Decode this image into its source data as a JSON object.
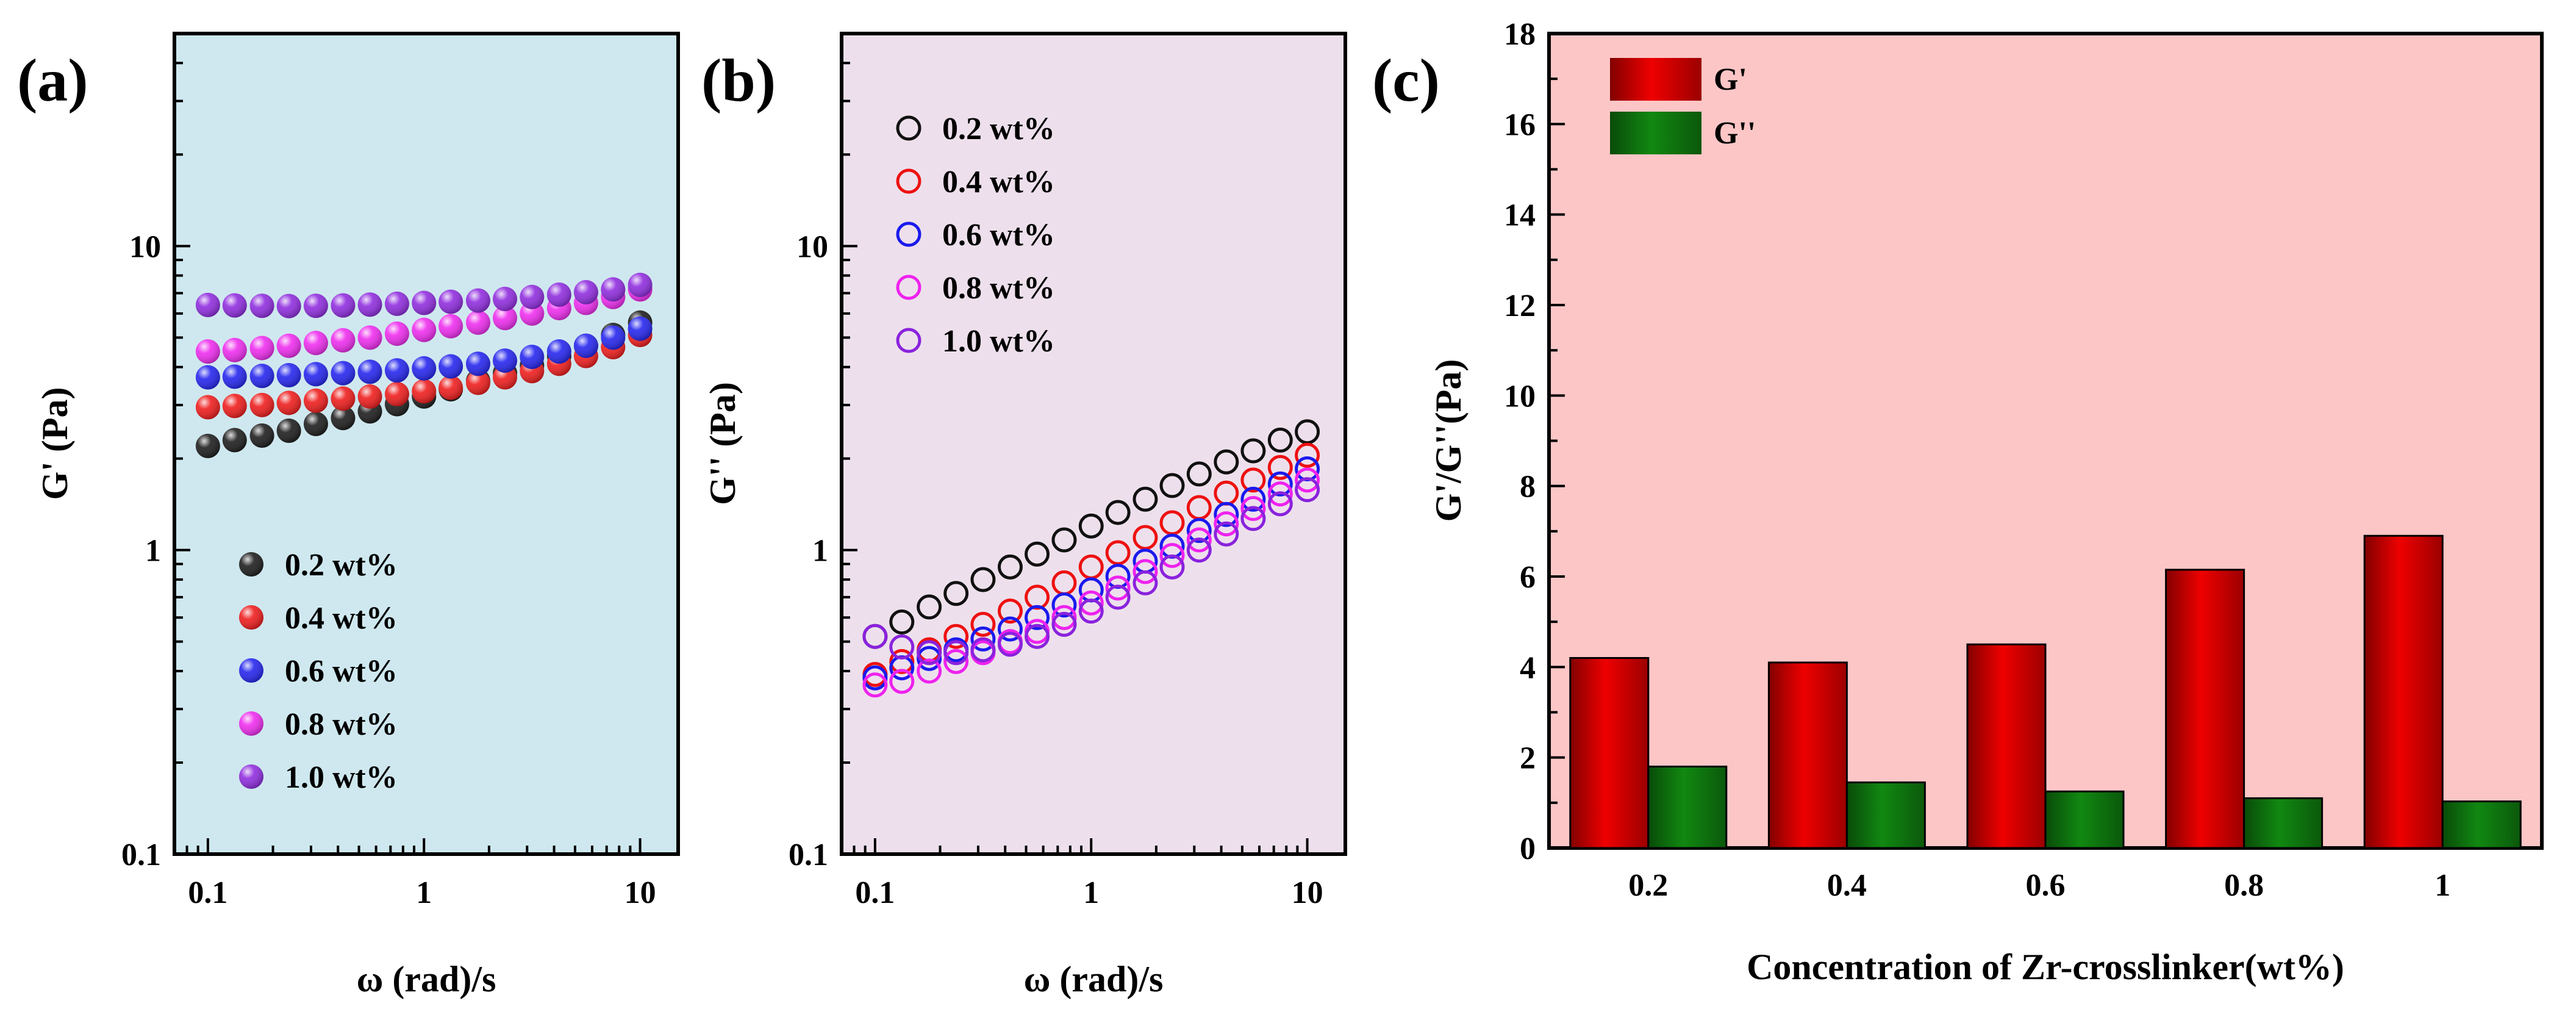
{
  "chart_data": [
    {
      "panel_label": "(a)",
      "type": "scatter",
      "xlabel": "ω (rad)/s",
      "ylabel": "G' (Pa)",
      "xscale": "log",
      "yscale": "log",
      "xlim": [
        0.07,
        15
      ],
      "ylim": [
        0.1,
        50
      ],
      "x_ticks": [
        {
          "v": 0.1,
          "label": "0.1"
        },
        {
          "v": 1,
          "label": "1"
        },
        {
          "v": 10,
          "label": "10"
        }
      ],
      "y_ticks": [
        {
          "v": 0.1,
          "label": "0.1"
        },
        {
          "v": 1,
          "label": "1"
        },
        {
          "v": 10,
          "label": "10"
        }
      ],
      "background": "#cfe8ef",
      "marker": "filled-sphere",
      "legend_position": "lower-right",
      "x": [
        0.1,
        0.133,
        0.178,
        0.237,
        0.316,
        0.422,
        0.562,
        0.75,
        1.0,
        1.33,
        1.78,
        2.37,
        3.16,
        4.22,
        5.62,
        7.5,
        10.0
      ],
      "series": [
        {
          "name": "0.2 wt%",
          "color": "#111111",
          "values": [
            2.2,
            2.3,
            2.38,
            2.47,
            2.6,
            2.72,
            2.86,
            3.02,
            3.2,
            3.38,
            3.6,
            3.82,
            4.05,
            4.35,
            4.7,
            5.1,
            5.6
          ]
        },
        {
          "name": "0.4 wt%",
          "color": "#ee1111",
          "values": [
            2.95,
            2.98,
            3.0,
            3.05,
            3.1,
            3.15,
            3.2,
            3.26,
            3.33,
            3.42,
            3.55,
            3.7,
            3.88,
            4.1,
            4.35,
            4.65,
            5.1
          ]
        },
        {
          "name": "0.6 wt%",
          "color": "#1a1aee",
          "values": [
            3.7,
            3.72,
            3.74,
            3.76,
            3.79,
            3.82,
            3.86,
            3.9,
            3.96,
            4.02,
            4.1,
            4.2,
            4.32,
            4.5,
            4.7,
            5.0,
            5.35
          ]
        },
        {
          "name": "0.8 wt%",
          "color": "#ee22ee",
          "values": [
            4.5,
            4.55,
            4.62,
            4.7,
            4.8,
            4.9,
            5.0,
            5.15,
            5.3,
            5.45,
            5.6,
            5.8,
            6.0,
            6.25,
            6.5,
            6.8,
            7.2
          ]
        },
        {
          "name": "1.0 wt%",
          "color": "#8a22dd",
          "values": [
            6.4,
            6.38,
            6.36,
            6.35,
            6.36,
            6.38,
            6.42,
            6.46,
            6.5,
            6.56,
            6.62,
            6.7,
            6.8,
            6.92,
            7.05,
            7.2,
            7.45
          ]
        }
      ]
    },
    {
      "panel_label": "(b)",
      "type": "scatter",
      "xlabel": "ω (rad)/s",
      "ylabel": "G'' (Pa)",
      "xscale": "log",
      "yscale": "log",
      "xlim": [
        0.07,
        15
      ],
      "ylim": [
        0.1,
        50
      ],
      "x_ticks": [
        {
          "v": 0.1,
          "label": "0.1"
        },
        {
          "v": 1,
          "label": "1"
        },
        {
          "v": 10,
          "label": "10"
        }
      ],
      "y_ticks": [
        {
          "v": 0.1,
          "label": "0.1"
        },
        {
          "v": 1,
          "label": "1"
        },
        {
          "v": 10,
          "label": "10"
        }
      ],
      "background": "#ede0ec",
      "marker": "open-circle",
      "legend_position": "top-left",
      "x": [
        0.1,
        0.133,
        0.178,
        0.237,
        0.316,
        0.422,
        0.562,
        0.75,
        1.0,
        1.33,
        1.78,
        2.37,
        3.16,
        4.22,
        5.62,
        7.5,
        10.0
      ],
      "series": [
        {
          "name": "0.2 wt%",
          "color": "#111111",
          "values": [
            0.52,
            0.58,
            0.65,
            0.72,
            0.8,
            0.88,
            0.97,
            1.08,
            1.2,
            1.33,
            1.47,
            1.63,
            1.78,
            1.95,
            2.12,
            2.3,
            2.45
          ]
        },
        {
          "name": "0.4 wt%",
          "color": "#ee1111",
          "values": [
            0.39,
            0.43,
            0.47,
            0.52,
            0.57,
            0.63,
            0.7,
            0.78,
            0.88,
            0.98,
            1.1,
            1.23,
            1.38,
            1.54,
            1.7,
            1.87,
            2.05
          ]
        },
        {
          "name": "0.6 wt%",
          "color": "#1a1aee",
          "values": [
            0.38,
            0.41,
            0.44,
            0.47,
            0.51,
            0.55,
            0.6,
            0.66,
            0.74,
            0.82,
            0.92,
            1.03,
            1.16,
            1.31,
            1.47,
            1.65,
            1.85
          ]
        },
        {
          "name": "0.8 wt%",
          "color": "#ee22ee",
          "values": [
            0.36,
            0.37,
            0.4,
            0.43,
            0.46,
            0.5,
            0.54,
            0.6,
            0.67,
            0.75,
            0.85,
            0.96,
            1.08,
            1.22,
            1.37,
            1.53,
            1.7
          ]
        },
        {
          "name": "1.0 wt%",
          "color": "#8a22dd",
          "values": [
            0.52,
            0.48,
            0.46,
            0.46,
            0.47,
            0.49,
            0.52,
            0.57,
            0.63,
            0.7,
            0.78,
            0.88,
            1.0,
            1.13,
            1.27,
            1.42,
            1.58
          ]
        }
      ]
    },
    {
      "panel_label": "(c)",
      "type": "bar",
      "xlabel": "Concentration of Zr-crosslinker(wt%)",
      "ylabel": "G'/G''(Pa)",
      "categories": [
        "0.2",
        "0.4",
        "0.6",
        "0.8",
        "1"
      ],
      "ylim": [
        0,
        18
      ],
      "y_ticks": [
        0,
        2,
        4,
        6,
        8,
        10,
        12,
        14,
        16,
        18
      ],
      "background": "#fdc6c6",
      "legend_position": "top-left",
      "series": [
        {
          "name": "G'",
          "color": "#ee0000",
          "values": [
            4.2,
            4.1,
            4.5,
            6.15,
            6.9
          ]
        },
        {
          "name": "G''",
          "color": "#118811",
          "values": [
            1.8,
            1.45,
            1.25,
            1.1,
            1.03
          ]
        }
      ]
    }
  ]
}
